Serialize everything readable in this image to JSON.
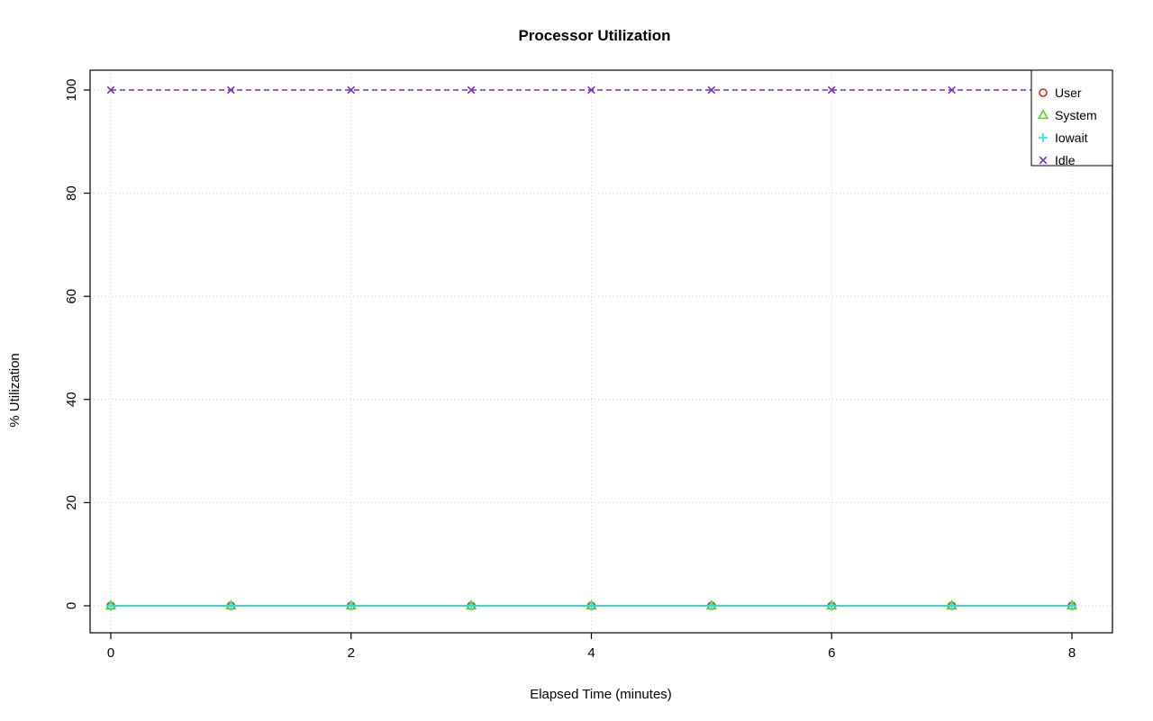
{
  "chart_data": {
    "type": "line",
    "title": "Processor Utilization",
    "xlabel": "Elapsed Time (minutes)",
    "ylabel": "% Utilization",
    "x": [
      0,
      1,
      2,
      3,
      4,
      5,
      6,
      7,
      8
    ],
    "xlim": [
      0,
      8
    ],
    "ylim": [
      0,
      100
    ],
    "x_ticks": [
      0,
      2,
      4,
      6,
      8
    ],
    "y_ticks": [
      0,
      20,
      40,
      60,
      80,
      100
    ],
    "grid": true,
    "grid_style": "dotted",
    "legend_position": "top-right",
    "series": [
      {
        "name": "User",
        "color": "#e02423",
        "marker": "circle",
        "line": "solid",
        "values": [
          0,
          0,
          0,
          0,
          0,
          0,
          0,
          0,
          0
        ]
      },
      {
        "name": "System",
        "color": "#56d62c",
        "marker": "triangle",
        "line": "solid",
        "values": [
          0,
          0,
          0,
          0,
          0,
          0,
          0,
          0,
          0
        ]
      },
      {
        "name": "Iowait",
        "color": "#21e4e4",
        "marker": "plus",
        "line": "solid",
        "values": [
          0,
          0,
          0,
          0,
          0,
          0,
          0,
          0,
          0
        ]
      },
      {
        "name": "Idle",
        "color": "#7a2fc6",
        "marker": "x",
        "line": "dashed",
        "values": [
          100,
          100,
          100,
          100,
          100,
          100,
          100,
          100,
          100
        ]
      }
    ]
  }
}
